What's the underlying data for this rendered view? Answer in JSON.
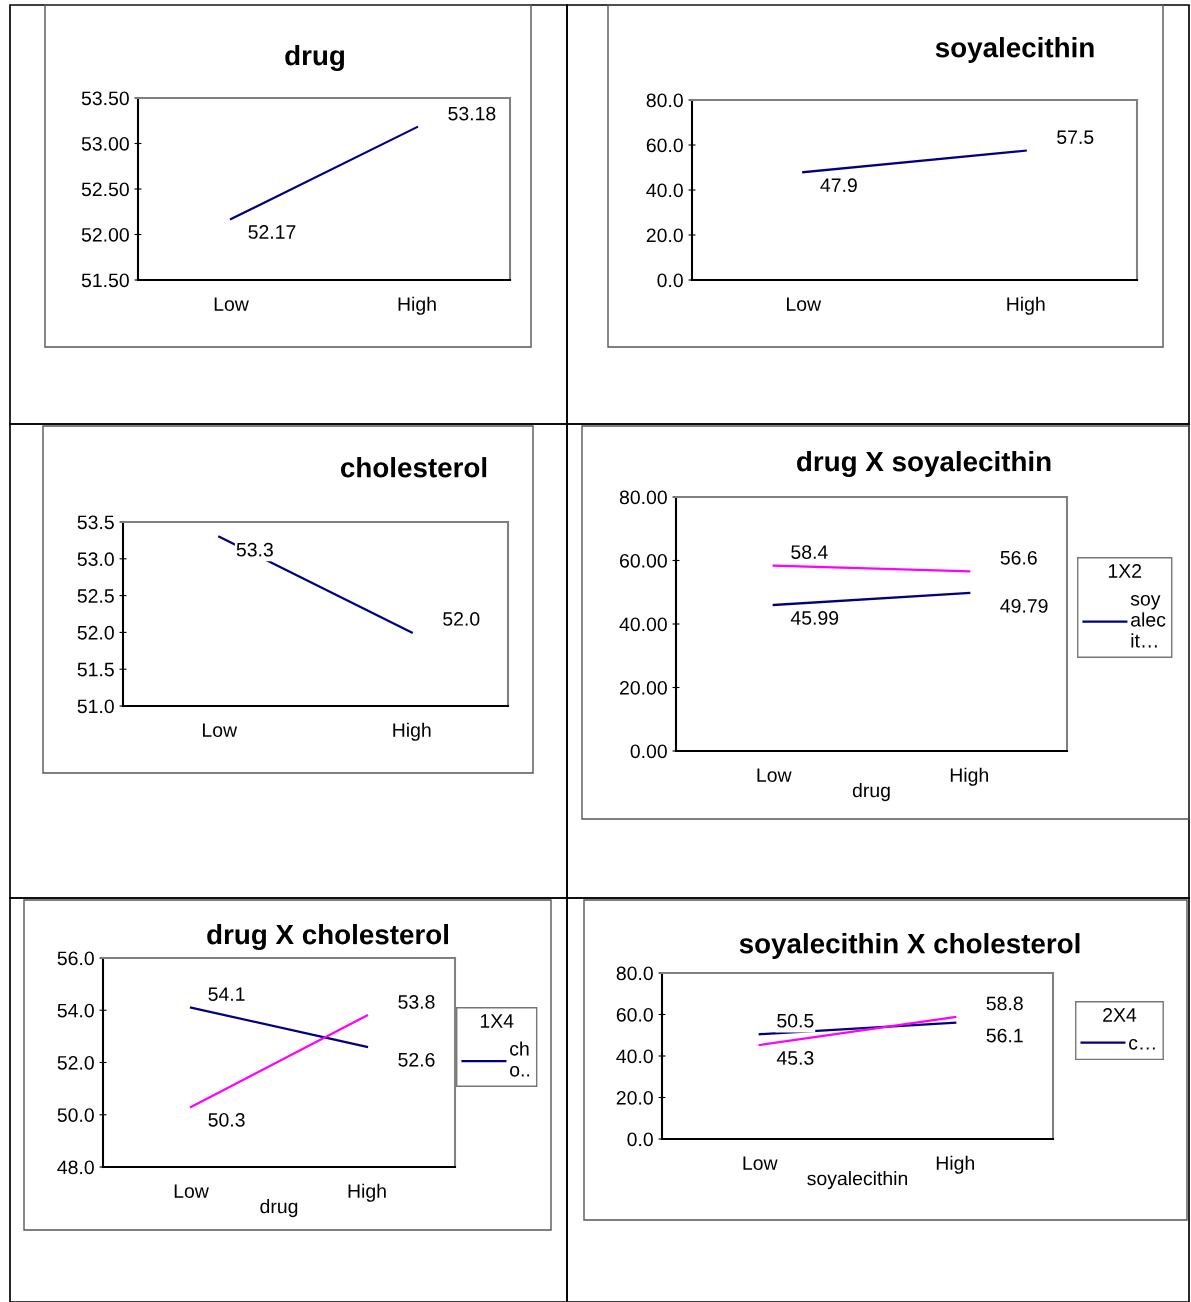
{
  "chart_data": [
    {
      "type": "line",
      "title": "drug",
      "categories": [
        "Low",
        "High"
      ],
      "series": [
        {
          "color": "#000080",
          "values": [
            52.17,
            53.18
          ]
        }
      ],
      "data_labels": true,
      "ylim": [
        51.5,
        53.5
      ],
      "yticks": [
        {
          "value": 51.5,
          "label": "51.50"
        },
        {
          "value": 52,
          "label": "52.00"
        },
        {
          "value": 52.5,
          "label": "52.50"
        },
        {
          "value": 53,
          "label": "53.00"
        },
        {
          "value": 53.5,
          "label": "53.50"
        }
      ],
      "grid": false,
      "legend": false
    },
    {
      "type": "line",
      "title": "soyalecithin",
      "categories": [
        "Low",
        "High"
      ],
      "series": [
        {
          "color": "#000080",
          "values": [
            47.9,
            57.5
          ]
        }
      ],
      "data_labels": true,
      "ylim": [
        0,
        80
      ],
      "yticks": [
        {
          "value": 0,
          "label": "0.0"
        },
        {
          "value": 20,
          "label": "20.0"
        },
        {
          "value": 40,
          "label": "40.0"
        },
        {
          "value": 60,
          "label": "60.0"
        },
        {
          "value": 80,
          "label": "80.0"
        }
      ],
      "grid": false,
      "legend": false
    },
    {
      "type": "line",
      "title": "cholesterol",
      "categories": [
        "Low",
        "High"
      ],
      "series": [
        {
          "color": "#000080",
          "values": [
            53.3,
            52.0
          ],
          "value_labels": [
            "53.3",
            "52.0"
          ]
        }
      ],
      "ylim": [
        51.0,
        53.5
      ],
      "yticks": [
        {
          "value": 51,
          "label": "51.0"
        },
        {
          "value": 51.5,
          "label": "51.5"
        },
        {
          "value": 52,
          "label": "52.0"
        },
        {
          "value": 52.5,
          "label": "52.5"
        },
        {
          "value": 53,
          "label": "53.0"
        },
        {
          "value": 53.5,
          "label": "53.5"
        }
      ],
      "grid": false,
      "legend": false
    },
    {
      "type": "line",
      "title": "drug X soyalecithin",
      "xlabel": "drug",
      "legend_title": "1X2",
      "categories": [
        "Low",
        "High"
      ],
      "series": [
        {
          "name": "soy\nalec\nit…",
          "color": "#000080",
          "values": [
            45.99,
            49.79
          ]
        },
        {
          "color": "#ff00ff",
          "values": [
            58.4,
            56.6
          ]
        }
      ],
      "data_labels": true,
      "ylim": [
        0,
        80
      ],
      "yticks": [
        {
          "value": 0,
          "label": "0.00"
        },
        {
          "value": 20,
          "label": "20.00"
        },
        {
          "value": 40,
          "label": "40.00"
        },
        {
          "value": 60,
          "label": "60.00"
        },
        {
          "value": 80,
          "label": "80.00"
        }
      ],
      "grid": false,
      "legend": "right"
    },
    {
      "type": "line",
      "title": "drug X cholesterol",
      "xlabel": "drug",
      "legend_title": "1X4",
      "categories": [
        "Low",
        "High"
      ],
      "series": [
        {
          "name": "ch\no..",
          "color": "#000080",
          "values": [
            54.1,
            52.6
          ]
        },
        {
          "color": "#ff00ff",
          "values": [
            50.3,
            53.8
          ]
        }
      ],
      "data_labels": true,
      "ylim": [
        48,
        56
      ],
      "yticks": [
        {
          "value": 48,
          "label": "48.0"
        },
        {
          "value": 50,
          "label": "50.0"
        },
        {
          "value": 52,
          "label": "52.0"
        },
        {
          "value": 54,
          "label": "54.0"
        },
        {
          "value": 56,
          "label": "56.0"
        }
      ],
      "grid": false,
      "legend": "right"
    },
    {
      "type": "line",
      "title": "soyalecithin X cholesterol",
      "xlabel": "soyalecithin",
      "legend_title": "2X4",
      "categories": [
        "Low",
        "High"
      ],
      "series": [
        {
          "name": "c…",
          "color": "#000080",
          "values": [
            50.5,
            56.1
          ]
        },
        {
          "color": "#ff00ff",
          "values": [
            45.3,
            58.8
          ]
        }
      ],
      "data_labels": true,
      "ylim": [
        0,
        80
      ],
      "yticks": [
        {
          "value": 0,
          "label": "0.0"
        },
        {
          "value": 20,
          "label": "20.0"
        },
        {
          "value": 40,
          "label": "40.0"
        },
        {
          "value": 60,
          "label": "60.0"
        },
        {
          "value": 80,
          "label": "80.0"
        }
      ],
      "grid": false,
      "legend": "right"
    }
  ]
}
